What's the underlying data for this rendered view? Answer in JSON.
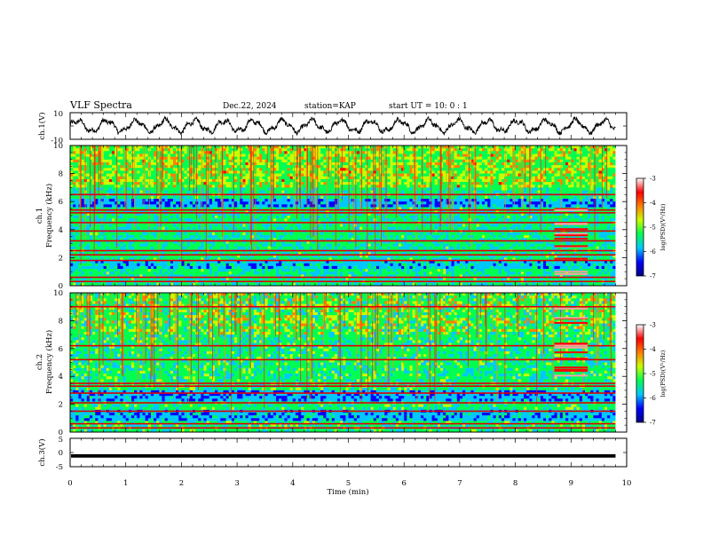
{
  "header": {
    "title": "VLF Spectra",
    "date": "Dec.22, 2024",
    "station": "station=KAP",
    "start": "start UT =  10: 0 : 1"
  },
  "colors": {
    "ink": "#000000",
    "spectrogram_scale": [
      "#000080",
      "#0000ff",
      "#00c8ff",
      "#00ff50",
      "#c8ff00",
      "#ff8000",
      "#ff0000",
      "#ffffff"
    ]
  },
  "chart_data": [
    {
      "type": "line",
      "panel": "ch1-waveform",
      "ylabel": "ch.1(V)",
      "ylim": [
        -10,
        10
      ],
      "yticks": [
        "10",
        "-10"
      ],
      "xlim": [
        0,
        10
      ],
      "x_unit": "min",
      "x_end": 9.8,
      "envelope": {
        "min": -7,
        "max": 7,
        "mean": 0
      }
    },
    {
      "type": "heatmap",
      "panel": "ch1-spectrogram",
      "ylabel": "ch.1\nFrequency (kHz)",
      "ylim": [
        0,
        10
      ],
      "yticks": [
        "0",
        "2",
        "4",
        "6",
        "8",
        "10"
      ],
      "xlim": [
        0,
        9.8
      ],
      "colorbar": {
        "label": "log(PSD)(V²/Hz)",
        "range": [
          -7,
          -3
        ],
        "ticks": [
          "-3",
          "-4",
          "-5",
          "-6",
          "-7"
        ]
      },
      "persistent_lines_khz": [
        0.3,
        0.6,
        1.8,
        2.2,
        2.5,
        3.2,
        3.9,
        4.5,
        5.2,
        5.4,
        6.5
      ],
      "event_window_min": [
        8.7,
        9.3
      ]
    },
    {
      "type": "heatmap",
      "panel": "ch2-spectrogram",
      "ylabel": "ch.2\nFrequency (kHz)",
      "ylim": [
        0,
        10
      ],
      "yticks": [
        "0",
        "2",
        "4",
        "6",
        "8",
        "10"
      ],
      "xlim": [
        0,
        9.8
      ],
      "colorbar": {
        "label": "log(PSD)(V²/Hz)",
        "range": [
          -7,
          -3
        ],
        "ticks": [
          "-3",
          "-4",
          "-5",
          "-6",
          "-7"
        ]
      },
      "persistent_lines_khz": [
        0.3,
        0.6,
        1.5,
        2.1,
        2.8,
        3.3,
        3.5,
        5.2,
        6.2,
        9.0
      ],
      "event_window_min": [
        8.7,
        9.3
      ]
    },
    {
      "type": "line",
      "panel": "ch3-waveform",
      "ylabel": "ch.3(V)",
      "ylim": [
        -5,
        5
      ],
      "yticks": [
        "5",
        "0",
        "-5"
      ],
      "xlim": [
        0,
        10
      ],
      "xlabel": "Time (min)",
      "xticks": [
        "0",
        "1",
        "2",
        "3",
        "4",
        "5",
        "6",
        "7",
        "8",
        "9",
        "10"
      ],
      "level": -1.2,
      "band_halfwidth": 0.6
    }
  ]
}
